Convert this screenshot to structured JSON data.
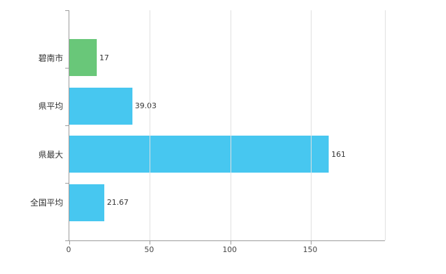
{
  "chart_data": {
    "type": "bar",
    "orientation": "horizontal",
    "title": "",
    "xlabel": "",
    "ylabel": "",
    "categories": [
      "碧南市",
      "県平均",
      "県最大",
      "全国平均"
    ],
    "values": [
      17,
      39.03,
      161,
      21.67
    ],
    "value_labels": [
      "17",
      "39.03",
      "161",
      "21.67"
    ],
    "bar_colors": [
      "#69C779",
      "#47C7F0",
      "#47C7F0",
      "#47C7F0"
    ],
    "xlim": [
      0,
      196
    ],
    "xticks": [
      0,
      50,
      100,
      150
    ],
    "xtick_labels": [
      "0",
      "50",
      "100",
      "150"
    ],
    "grid": "vertical-gridlines-on",
    "legend": "none",
    "background_color": "#ffffff",
    "gridline_color": "#e0e0e0",
    "axis_color": "#9b9b9b",
    "value_label_color": "#333333"
  }
}
